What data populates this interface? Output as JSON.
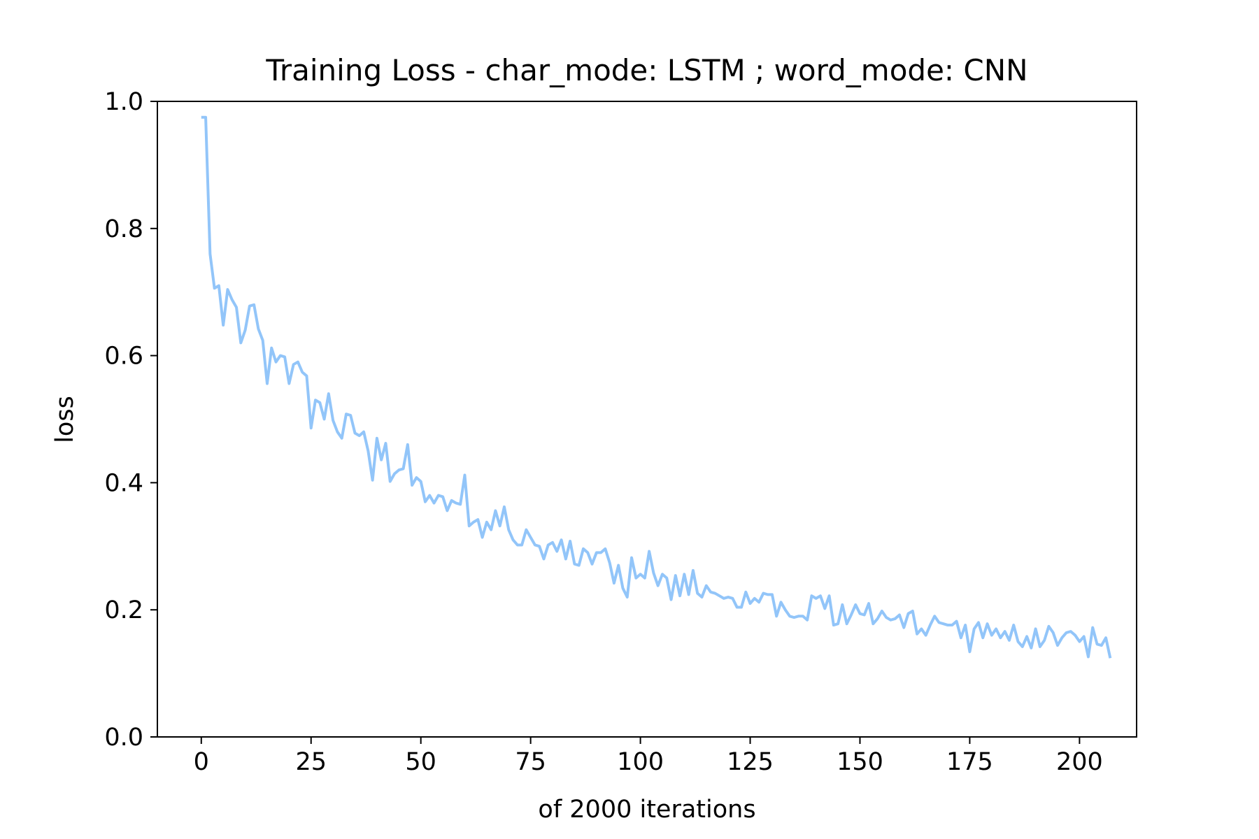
{
  "chart_data": {
    "type": "line",
    "title": "Training Loss - char_mode: LSTM ; word_mode: CNN",
    "xlabel": "of 2000 iterations",
    "ylabel": "loss",
    "xlim": [
      -10,
      213
    ],
    "ylim": [
      0.0,
      1.0
    ],
    "x_ticks": [
      0,
      25,
      50,
      75,
      100,
      125,
      150,
      175,
      200
    ],
    "x_tick_labels": [
      "0",
      "25",
      "50",
      "75",
      "100",
      "125",
      "150",
      "175",
      "200"
    ],
    "y_ticks": [
      0.0,
      0.2,
      0.4,
      0.6,
      0.8,
      1.0
    ],
    "y_tick_labels": [
      "0.0",
      "0.2",
      "0.4",
      "0.6",
      "0.8",
      "1.0"
    ],
    "grid": false,
    "line_color": "#92C5F9",
    "series": [
      {
        "values": [
          0.975,
          0.975,
          0.76,
          0.706,
          0.71,
          0.648,
          0.704,
          0.688,
          0.676,
          0.62,
          0.64,
          0.678,
          0.68,
          0.642,
          0.624,
          0.556,
          0.612,
          0.59,
          0.6,
          0.598,
          0.556,
          0.586,
          0.59,
          0.574,
          0.568,
          0.486,
          0.53,
          0.526,
          0.5,
          0.54,
          0.498,
          0.48,
          0.47,
          0.508,
          0.506,
          0.478,
          0.474,
          0.48,
          0.45,
          0.404,
          0.47,
          0.436,
          0.462,
          0.402,
          0.414,
          0.42,
          0.422,
          0.46,
          0.396,
          0.408,
          0.402,
          0.37,
          0.38,
          0.368,
          0.38,
          0.378,
          0.356,
          0.372,
          0.368,
          0.366,
          0.412,
          0.332,
          0.338,
          0.342,
          0.314,
          0.338,
          0.326,
          0.356,
          0.332,
          0.362,
          0.326,
          0.31,
          0.302,
          0.302,
          0.326,
          0.314,
          0.302,
          0.3,
          0.28,
          0.302,
          0.306,
          0.292,
          0.31,
          0.28,
          0.308,
          0.272,
          0.27,
          0.296,
          0.29,
          0.272,
          0.29,
          0.29,
          0.296,
          0.274,
          0.242,
          0.27,
          0.234,
          0.22,
          0.282,
          0.25,
          0.256,
          0.25,
          0.292,
          0.258,
          0.238,
          0.256,
          0.25,
          0.216,
          0.254,
          0.222,
          0.256,
          0.224,
          0.262,
          0.226,
          0.22,
          0.238,
          0.228,
          0.226,
          0.222,
          0.218,
          0.22,
          0.218,
          0.204,
          0.204,
          0.228,
          0.21,
          0.218,
          0.212,
          0.226,
          0.224,
          0.224,
          0.19,
          0.212,
          0.2,
          0.19,
          0.188,
          0.19,
          0.19,
          0.184,
          0.222,
          0.218,
          0.222,
          0.202,
          0.222,
          0.176,
          0.178,
          0.208,
          0.178,
          0.192,
          0.208,
          0.194,
          0.192,
          0.21,
          0.178,
          0.186,
          0.198,
          0.188,
          0.184,
          0.186,
          0.192,
          0.172,
          0.194,
          0.198,
          0.162,
          0.17,
          0.16,
          0.176,
          0.19,
          0.18,
          0.178,
          0.176,
          0.176,
          0.182,
          0.156,
          0.176,
          0.134,
          0.17,
          0.18,
          0.156,
          0.178,
          0.16,
          0.17,
          0.156,
          0.166,
          0.152,
          0.176,
          0.15,
          0.142,
          0.158,
          0.14,
          0.17,
          0.142,
          0.152,
          0.174,
          0.164,
          0.144,
          0.156,
          0.164,
          0.166,
          0.16,
          0.15,
          0.158,
          0.126,
          0.172,
          0.146,
          0.144,
          0.156,
          0.124
        ]
      }
    ]
  }
}
